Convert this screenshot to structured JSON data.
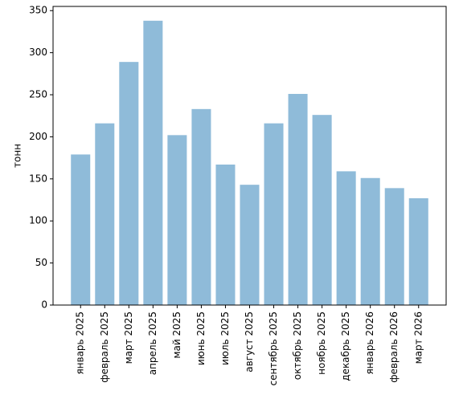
{
  "chart_data": {
    "type": "bar",
    "ylabel": "тонн",
    "categories": [
      "январь 2025",
      "февраль 2025",
      "март 2025",
      "апрель 2025",
      "май 2025",
      "июнь 2025",
      "июль 2025",
      "август 2025",
      "сентябрь 2025",
      "октябрь 2025",
      "ноябрь 2025",
      "декабрь 2025",
      "январь 2026",
      "февраль 2026",
      "март 2026"
    ],
    "values": [
      179,
      216,
      289,
      338,
      202,
      233,
      167,
      143,
      216,
      251,
      226,
      159,
      151,
      139,
      127
    ],
    "color": "#8fbbd9",
    "ylim": [
      0,
      355
    ],
    "yticks": [
      0,
      50,
      100,
      150,
      200,
      250,
      300,
      350
    ],
    "grid": false
  }
}
